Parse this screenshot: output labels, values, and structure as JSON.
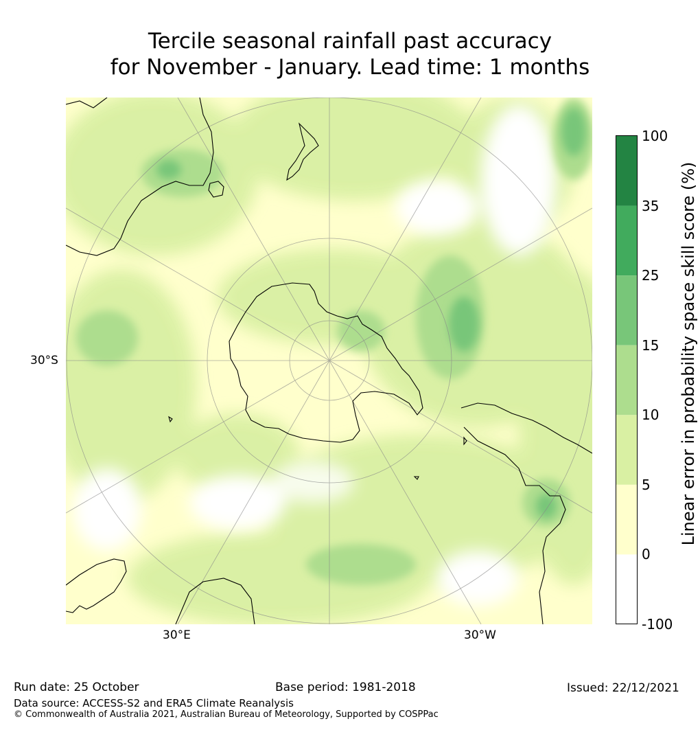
{
  "title": {
    "line1": "Tercile seasonal rainfall past accuracy",
    "line2": "for November - January. Lead time: 1 months"
  },
  "map": {
    "projection": "south-polar-stereographic",
    "graticule_labels": {
      "lat": "30°S",
      "lon_left": "30°E",
      "lon_right": "30°W"
    },
    "colors": {
      "ocean_light": "#ffffcc",
      "ocean_mid": "#d9f0a3",
      "ocean_green": "#addd8e",
      "coast": "#000000",
      "grid": "#888888"
    }
  },
  "colorbar": {
    "label": "Linear error in probability space skill score (%)",
    "ticks": [
      "100",
      "35",
      "25",
      "15",
      "10",
      "5",
      "0",
      "-100"
    ],
    "bins": [
      {
        "from": "35",
        "to": "100",
        "color": "#238443"
      },
      {
        "from": "25",
        "to": "35",
        "color": "#41ab5d"
      },
      {
        "from": "15",
        "to": "25",
        "color": "#78c679"
      },
      {
        "from": "10",
        "to": "15",
        "color": "#addd8e"
      },
      {
        "from": "5",
        "to": "10",
        "color": "#d9f0a3"
      },
      {
        "from": "0",
        "to": "5",
        "color": "#ffffcc"
      },
      {
        "from": "-100",
        "to": "0",
        "color": "#ffffff"
      }
    ]
  },
  "footer": {
    "run_date": "Run date: 25 October",
    "base_period": "Base period: 1981-2018",
    "issued": "Issued: 22/12/2021",
    "data_source": "Data source: ACCESS-S2 and ERA5 Climate Reanalysis",
    "copyright": "© Commonwealth of Australia 2021, Australian Bureau of Meteorology, Supported by COSPPac"
  }
}
